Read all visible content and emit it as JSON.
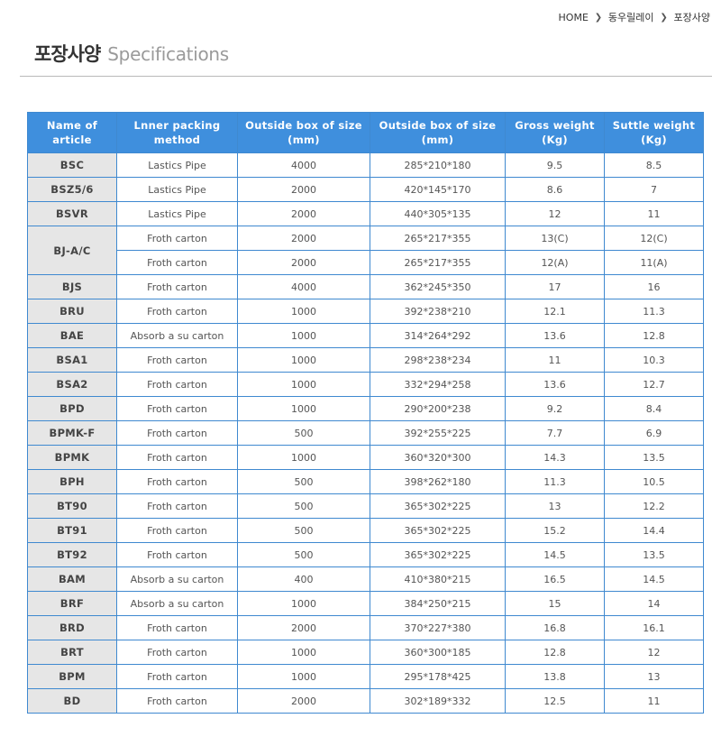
{
  "breadcrumb": {
    "home": "HOME",
    "level1": "동우릴레이",
    "level2": "포장사양",
    "separator_icon": "chevron-right-icon"
  },
  "title": {
    "korean": "포장사양",
    "english": "Specifications"
  },
  "table": {
    "headers": [
      "Name of article",
      "Lnner packing method",
      "Outside box of size (mm)",
      "Outside box of size (mm)",
      "Gross weight (Kg)",
      "Suttle weight (Kg)"
    ],
    "rows": [
      {
        "name": "BSC",
        "packing": "Lastics Pipe",
        "box_qty": "4000",
        "box_size": "285*210*180",
        "gross": "9.5",
        "suttle": "8.5"
      },
      {
        "name": "BSZ5/6",
        "packing": "Lastics Pipe",
        "box_qty": "2000",
        "box_size": "420*145*170",
        "gross": "8.6",
        "suttle": "7"
      },
      {
        "name": "BSVR",
        "packing": "Lastics Pipe",
        "box_qty": "2000",
        "box_size": "440*305*135",
        "gross": "12",
        "suttle": "11"
      },
      {
        "name": "BJ-A/C",
        "packing": "Froth carton",
        "box_qty": "2000",
        "box_size": "265*217*355",
        "gross": "13(C)",
        "suttle": "12(C)"
      },
      {
        "name": "",
        "packing": "Froth carton",
        "box_qty": "2000",
        "box_size": "265*217*355",
        "gross": "12(A)",
        "suttle": "11(A)"
      },
      {
        "name": "BJS",
        "packing": "Froth carton",
        "box_qty": "4000",
        "box_size": "362*245*350",
        "gross": "17",
        "suttle": "16"
      },
      {
        "name": "BRU",
        "packing": "Froth carton",
        "box_qty": "1000",
        "box_size": "392*238*210",
        "gross": "12.1",
        "suttle": "11.3"
      },
      {
        "name": "BAE",
        "packing": "Absorb a su carton",
        "box_qty": "1000",
        "box_size": "314*264*292",
        "gross": "13.6",
        "suttle": "12.8"
      },
      {
        "name": "BSA1",
        "packing": "Froth carton",
        "box_qty": "1000",
        "box_size": "298*238*234",
        "gross": "11",
        "suttle": "10.3"
      },
      {
        "name": "BSA2",
        "packing": "Froth carton",
        "box_qty": "1000",
        "box_size": "332*294*258",
        "gross": "13.6",
        "suttle": "12.7"
      },
      {
        "name": "BPD",
        "packing": "Froth carton",
        "box_qty": "1000",
        "box_size": "290*200*238",
        "gross": "9.2",
        "suttle": "8.4"
      },
      {
        "name": "BPMK-F",
        "packing": "Froth carton",
        "box_qty": "500",
        "box_size": "392*255*225",
        "gross": "7.7",
        "suttle": "6.9"
      },
      {
        "name": "BPMK",
        "packing": "Froth carton",
        "box_qty": "1000",
        "box_size": "360*320*300",
        "gross": "14.3",
        "suttle": "13.5"
      },
      {
        "name": "BPH",
        "packing": "Froth carton",
        "box_qty": "500",
        "box_size": "398*262*180",
        "gross": "11.3",
        "suttle": "10.5"
      },
      {
        "name": "BT90",
        "packing": "Froth carton",
        "box_qty": "500",
        "box_size": "365*302*225",
        "gross": "13",
        "suttle": "12.2"
      },
      {
        "name": "BT91",
        "packing": "Froth carton",
        "box_qty": "500",
        "box_size": "365*302*225",
        "gross": "15.2",
        "suttle": "14.4"
      },
      {
        "name": "BT92",
        "packing": "Froth carton",
        "box_qty": "500",
        "box_size": "365*302*225",
        "gross": "14.5",
        "suttle": "13.5"
      },
      {
        "name": "BAM",
        "packing": "Absorb a su carton",
        "box_qty": "400",
        "box_size": "410*380*215",
        "gross": "16.5",
        "suttle": "14.5"
      },
      {
        "name": "BRF",
        "packing": "Absorb a su carton",
        "box_qty": "1000",
        "box_size": "384*250*215",
        "gross": "15",
        "suttle": "14"
      },
      {
        "name": "BRD",
        "packing": "Froth carton",
        "box_qty": "2000",
        "box_size": "370*227*380",
        "gross": "16.8",
        "suttle": "16.1"
      },
      {
        "name": "BRT",
        "packing": "Froth carton",
        "box_qty": "1000",
        "box_size": "360*300*185",
        "gross": "12.8",
        "suttle": "12"
      },
      {
        "name": "BPM",
        "packing": "Froth carton",
        "box_qty": "1000",
        "box_size": "295*178*425",
        "gross": "13.8",
        "suttle": "13"
      },
      {
        "name": "BD",
        "packing": "Froth carton",
        "box_qty": "2000",
        "box_size": "302*189*332",
        "gross": "12.5",
        "suttle": "11"
      }
    ]
  },
  "colors": {
    "header_bg": "#3f8fdd",
    "border": "#3f89d0",
    "name_cell_bg": "#e6e6e6",
    "title_gray": "#9a9a9a"
  }
}
